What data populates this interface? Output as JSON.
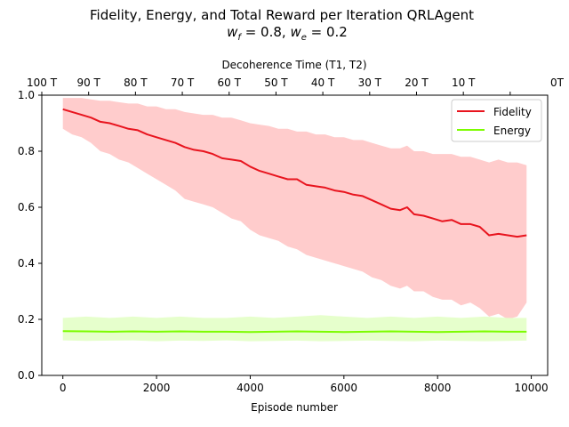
{
  "chart_data": {
    "type": "line",
    "title": "Fidelity, Energy, and Total Reward per Iteration QRLAgent",
    "subtitle_parts": {
      "wf_sym": "w",
      "wf_sub": "f",
      "wf_val": " = 0.8, ",
      "we_sym": "w",
      "we_sub": "e",
      "we_val": " = 0.2"
    },
    "xlabel": "Episode number",
    "top_xlabel": "Decoherence Time (T1, T2)",
    "ylabel": "",
    "xlim": [
      -450,
      10350
    ],
    "ylim": [
      0.0,
      1.0
    ],
    "x_ticks": [
      0,
      2000,
      4000,
      6000,
      8000,
      10000
    ],
    "x_tick_labels": [
      "0",
      "2000",
      "4000",
      "6000",
      "8000",
      "10000"
    ],
    "y_ticks": [
      0.0,
      0.2,
      0.4,
      0.6,
      0.8,
      1.0
    ],
    "y_tick_labels": [
      "0.0",
      "0.2",
      "0.4",
      "0.6",
      "0.8",
      "1.0"
    ],
    "top_x_ticks": [
      -450,
      550,
      1550,
      2550,
      3550,
      4550,
      5550,
      6550,
      7550,
      8550,
      9550,
      10550
    ],
    "top_x_tick_labels": [
      "100 T",
      "90 T",
      "80 T",
      "70 T",
      "60 T",
      "50 T",
      "40 T",
      "30 T",
      "20 T",
      "10 T",
      "",
      "0T"
    ],
    "legend_position": "top-right",
    "series": [
      {
        "name": "Fidelity",
        "color": "#e8141e",
        "band_color": "#ffcccc",
        "x": [
          0,
          200,
          400,
          600,
          800,
          1000,
          1200,
          1400,
          1600,
          1800,
          2000,
          2200,
          2400,
          2600,
          2800,
          3000,
          3200,
          3400,
          3600,
          3800,
          4000,
          4200,
          4400,
          4600,
          4800,
          5000,
          5200,
          5400,
          5600,
          5800,
          6000,
          6200,
          6400,
          6600,
          6800,
          7000,
          7200,
          7350,
          7500,
          7700,
          7900,
          8100,
          8300,
          8500,
          8700,
          8900,
          9100,
          9300,
          9500,
          9700,
          9900
        ],
        "values": [
          0.95,
          0.94,
          0.93,
          0.92,
          0.905,
          0.9,
          0.89,
          0.88,
          0.875,
          0.86,
          0.85,
          0.84,
          0.83,
          0.815,
          0.805,
          0.8,
          0.79,
          0.775,
          0.77,
          0.765,
          0.745,
          0.73,
          0.72,
          0.71,
          0.7,
          0.7,
          0.68,
          0.675,
          0.67,
          0.66,
          0.655,
          0.645,
          0.64,
          0.625,
          0.61,
          0.595,
          0.59,
          0.6,
          0.575,
          0.57,
          0.56,
          0.55,
          0.555,
          0.54,
          0.54,
          0.53,
          0.5,
          0.505,
          0.5,
          0.495,
          0.5
        ],
        "band_low": [
          0.88,
          0.86,
          0.85,
          0.83,
          0.8,
          0.79,
          0.77,
          0.76,
          0.74,
          0.72,
          0.7,
          0.68,
          0.66,
          0.63,
          0.62,
          0.61,
          0.6,
          0.58,
          0.56,
          0.55,
          0.52,
          0.5,
          0.49,
          0.48,
          0.46,
          0.45,
          0.43,
          0.42,
          0.41,
          0.4,
          0.39,
          0.38,
          0.37,
          0.35,
          0.34,
          0.32,
          0.31,
          0.32,
          0.3,
          0.3,
          0.28,
          0.27,
          0.27,
          0.25,
          0.26,
          0.24,
          0.21,
          0.22,
          0.2,
          0.21,
          0.26
        ],
        "band_high": [
          0.99,
          0.99,
          0.99,
          0.985,
          0.98,
          0.98,
          0.975,
          0.97,
          0.97,
          0.96,
          0.96,
          0.95,
          0.95,
          0.94,
          0.935,
          0.93,
          0.93,
          0.92,
          0.92,
          0.91,
          0.9,
          0.895,
          0.89,
          0.88,
          0.88,
          0.87,
          0.87,
          0.86,
          0.86,
          0.85,
          0.85,
          0.84,
          0.84,
          0.83,
          0.82,
          0.81,
          0.81,
          0.82,
          0.8,
          0.8,
          0.79,
          0.79,
          0.79,
          0.78,
          0.78,
          0.77,
          0.76,
          0.77,
          0.76,
          0.76,
          0.75
        ]
      },
      {
        "name": "Energy",
        "color": "#7cfc00",
        "band_color": "#e6ffcc",
        "x": [
          0,
          500,
          1000,
          1500,
          2000,
          2500,
          3000,
          3500,
          4000,
          4500,
          5000,
          5500,
          6000,
          6500,
          7000,
          7500,
          8000,
          8500,
          9000,
          9500,
          9900
        ],
        "values": [
          0.158,
          0.157,
          0.156,
          0.157,
          0.156,
          0.157,
          0.156,
          0.156,
          0.155,
          0.156,
          0.157,
          0.156,
          0.155,
          0.156,
          0.157,
          0.156,
          0.155,
          0.156,
          0.157,
          0.156,
          0.156
        ],
        "band_low": [
          0.125,
          0.123,
          0.124,
          0.125,
          0.122,
          0.124,
          0.123,
          0.125,
          0.122,
          0.123,
          0.124,
          0.122,
          0.123,
          0.124,
          0.123,
          0.122,
          0.124,
          0.123,
          0.122,
          0.123,
          0.124
        ],
        "band_high": [
          0.205,
          0.21,
          0.205,
          0.21,
          0.205,
          0.21,
          0.205,
          0.205,
          0.21,
          0.205,
          0.21,
          0.215,
          0.21,
          0.205,
          0.21,
          0.205,
          0.21,
          0.205,
          0.21,
          0.205,
          0.205
        ]
      }
    ],
    "grid": false
  }
}
